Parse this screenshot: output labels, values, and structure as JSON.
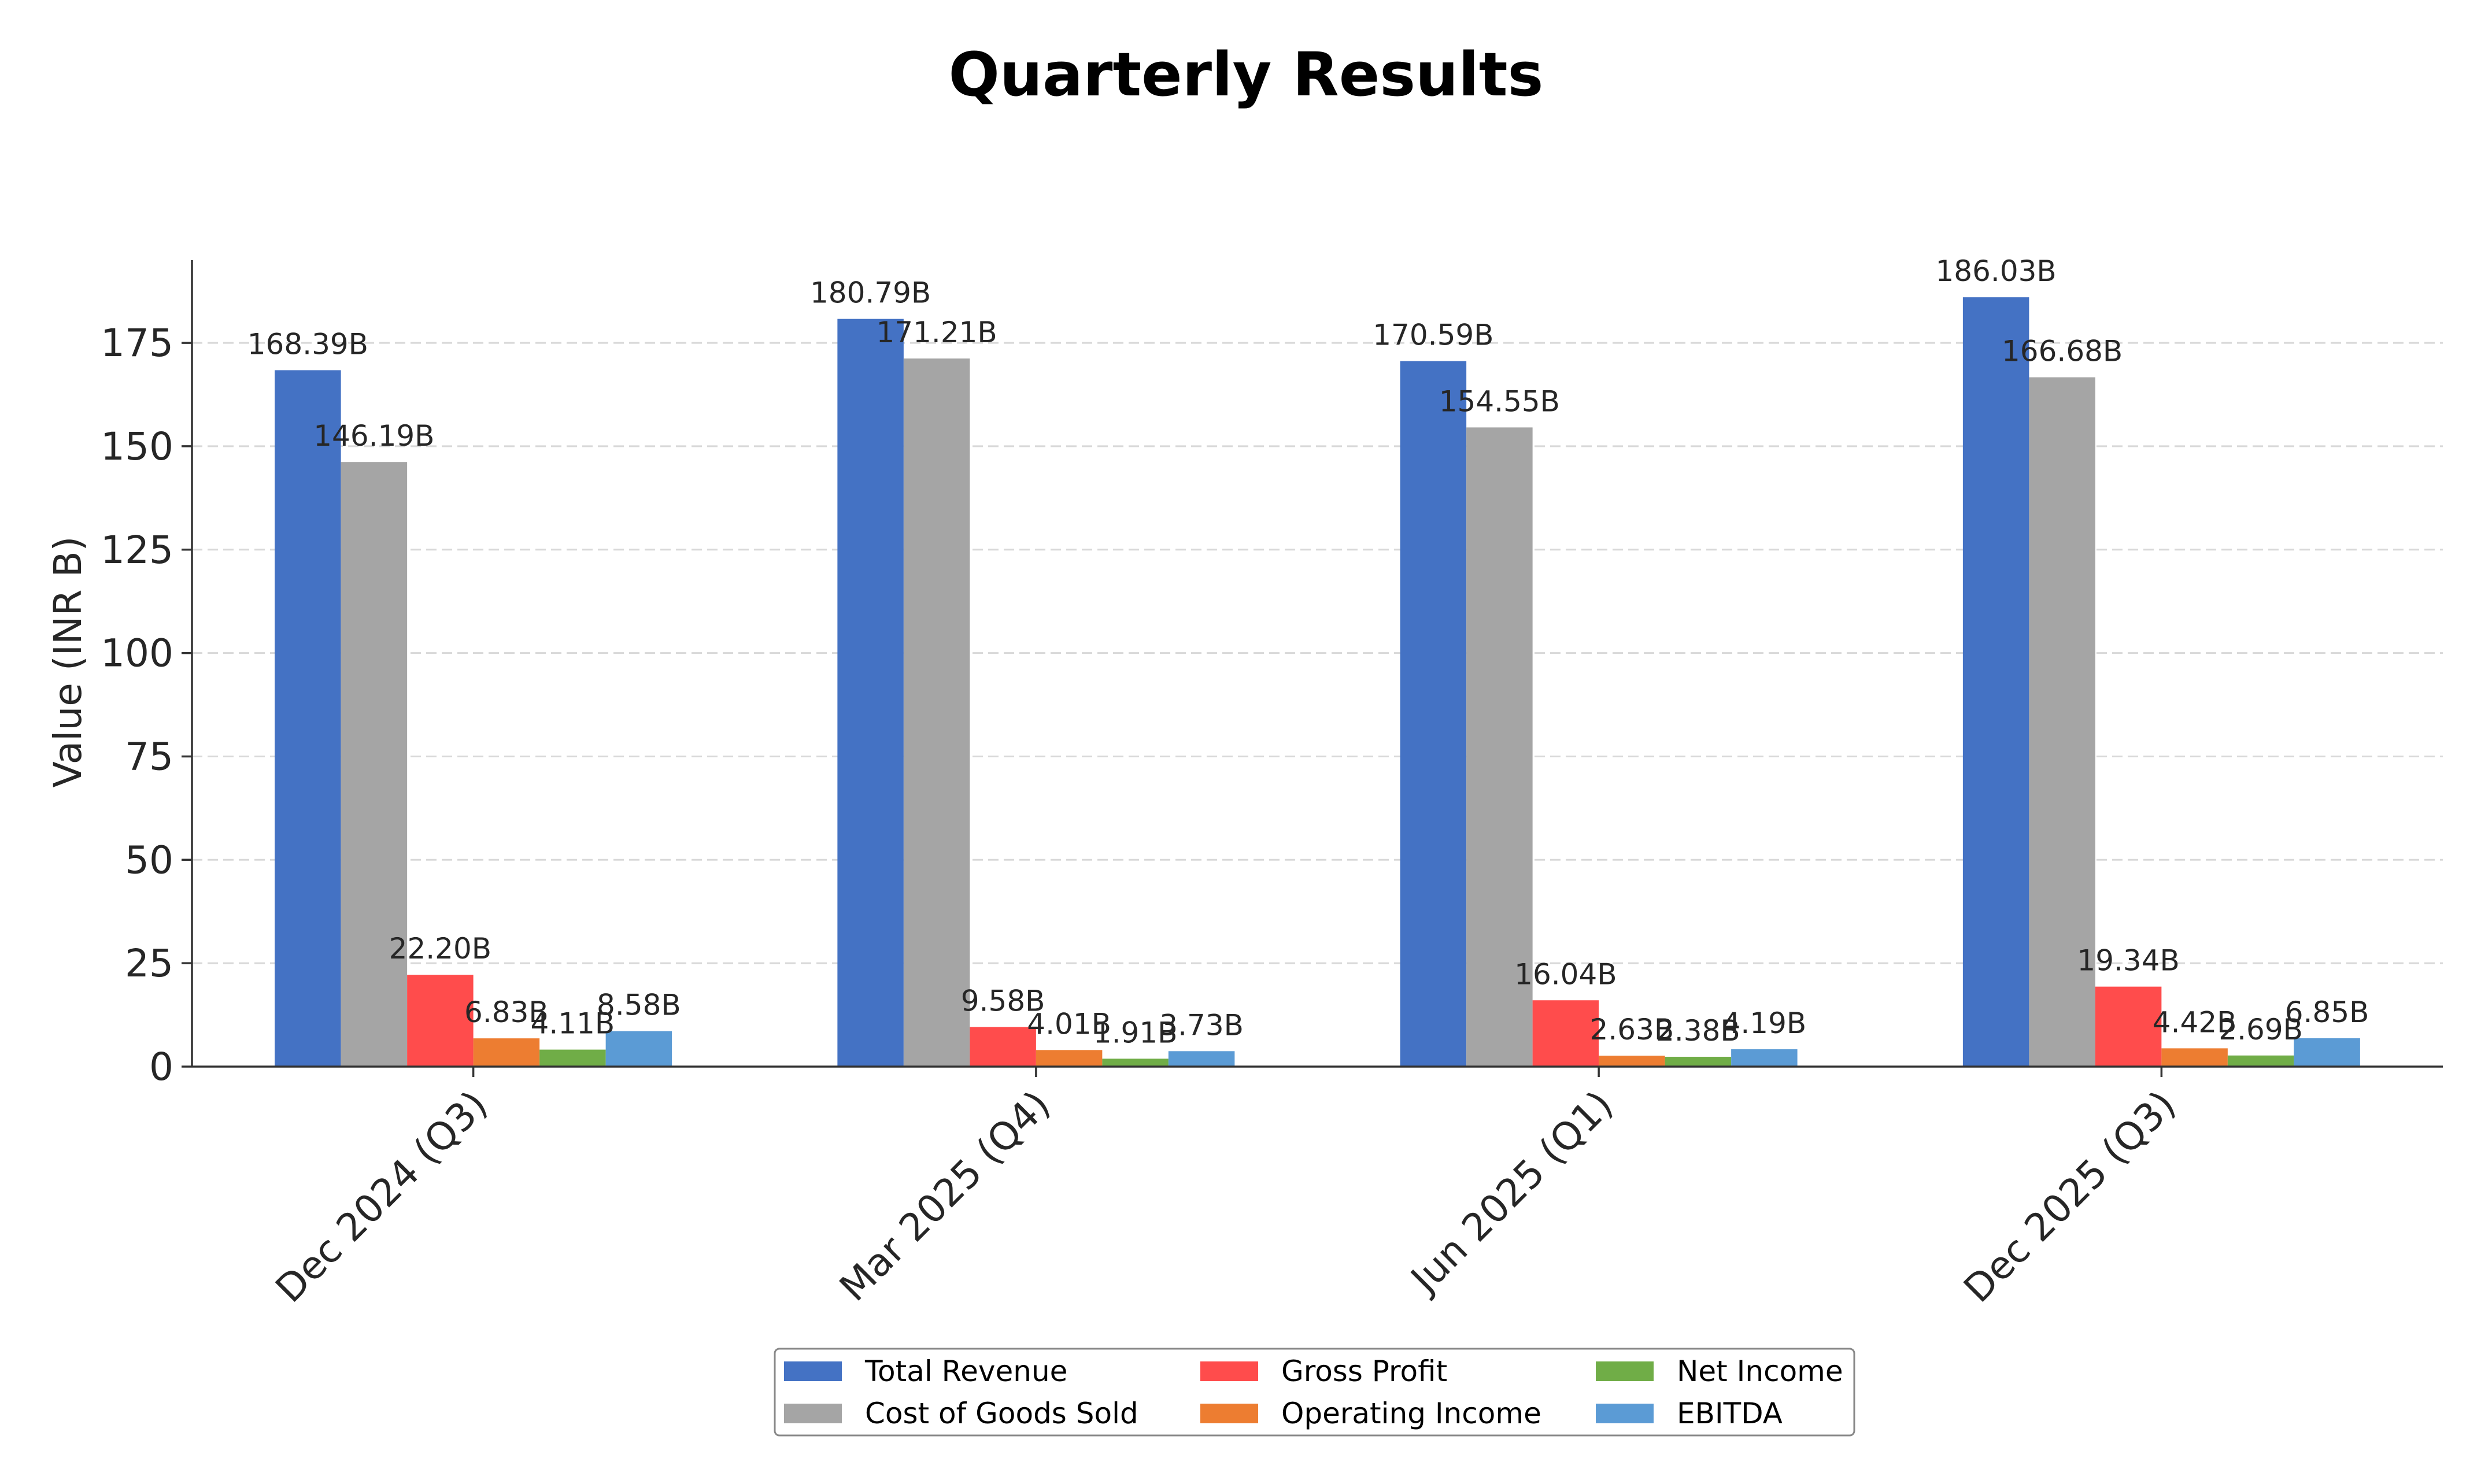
{
  "chart_data": {
    "type": "bar",
    "title": "Quarterly Results",
    "ylabel": "Value (INR B)",
    "xlabel": "",
    "ylim": [
      0,
      195
    ],
    "yticks": [
      0,
      25,
      50,
      75,
      100,
      125,
      150,
      175
    ],
    "grid": true,
    "legend_position": "bottom-center",
    "categories": [
      "Dec 2024 (Q3)",
      "Mar 2025 (Q4)",
      "Jun 2025 (Q1)",
      "Dec 2025 (Q3)"
    ],
    "series": [
      {
        "name": "Total Revenue",
        "color": "#4472c4",
        "values": [
          168.39,
          180.79,
          170.59,
          186.03
        ],
        "labels": [
          "168.39B",
          "180.79B",
          "170.59B",
          "186.03B"
        ]
      },
      {
        "name": "Cost of Goods Sold",
        "color": "#a5a5a5",
        "values": [
          146.19,
          171.21,
          154.55,
          166.68
        ],
        "labels": [
          "146.19B",
          "171.21B",
          "154.55B",
          "166.68B"
        ]
      },
      {
        "name": "Gross Profit",
        "color": "#ff4c4c",
        "values": [
          22.2,
          9.58,
          16.04,
          19.34
        ],
        "labels": [
          "22.20B",
          "9.58B",
          "16.04B",
          "19.34B"
        ]
      },
      {
        "name": "Operating Income",
        "color": "#ed7d31",
        "values": [
          6.83,
          4.01,
          2.63,
          4.42
        ],
        "labels": [
          "6.83B",
          "4.01B",
          "2.63B",
          "4.42B"
        ]
      },
      {
        "name": "Net Income",
        "color": "#70ad47",
        "values": [
          4.11,
          1.91,
          2.38,
          2.69
        ],
        "labels": [
          "4.11B",
          "1.91B",
          "2.38B",
          "2.69B"
        ]
      },
      {
        "name": "EBITDA",
        "color": "#5b9bd5",
        "values": [
          8.58,
          3.73,
          4.19,
          6.85
        ],
        "labels": [
          "8.58B",
          "3.73B",
          "4.19B",
          "6.85B"
        ]
      }
    ]
  }
}
